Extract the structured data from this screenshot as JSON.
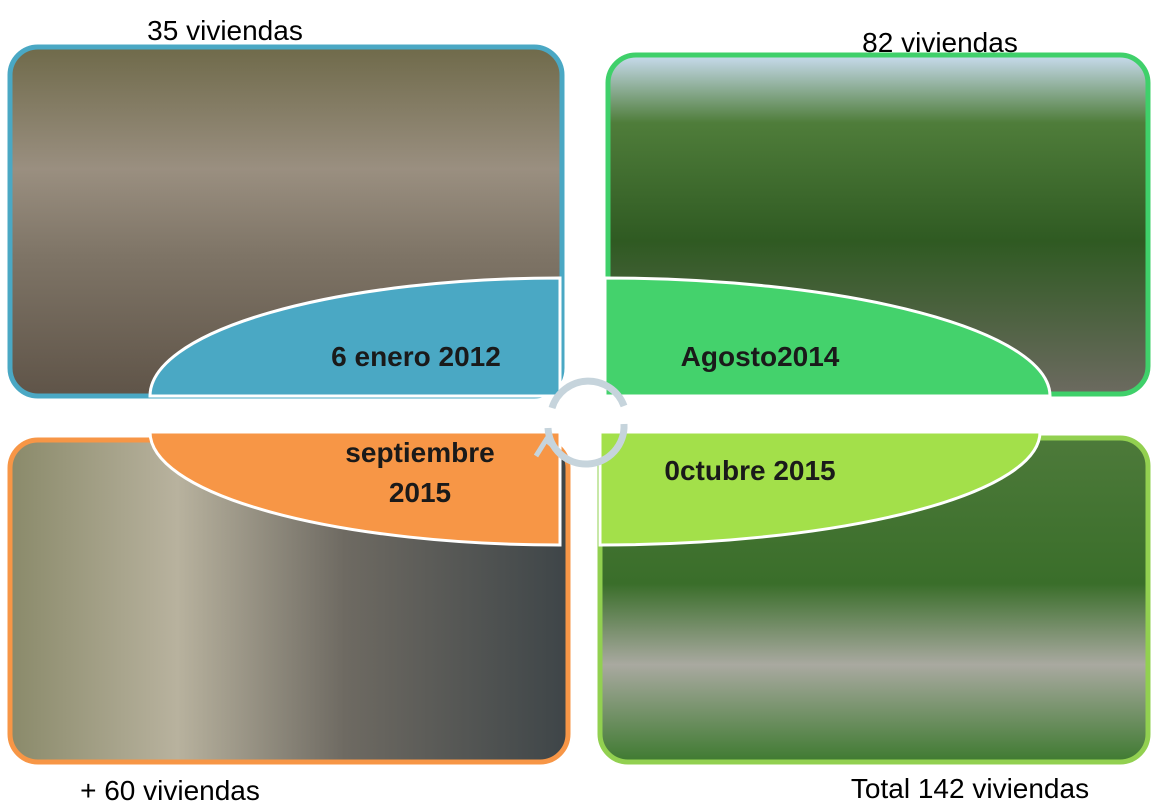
{
  "quadrants": [
    {
      "caption": "35 viviendas",
      "label": [
        "6 enero 2012"
      ]
    },
    {
      "caption": "82 viviendas",
      "label": [
        "Agosto2014"
      ]
    },
    {
      "caption": "+ 60 viviendas",
      "label": [
        "septiembre",
        "2015"
      ]
    },
    {
      "caption": "Total 142 viviendas",
      "label": [
        "0ctubre 2015"
      ]
    }
  ]
}
